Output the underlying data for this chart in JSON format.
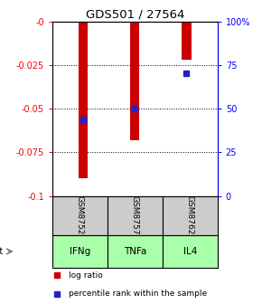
{
  "title": "GDS501 / 27564",
  "samples": [
    "GSM8752",
    "GSM8757",
    "GSM8762"
  ],
  "agents": [
    "IFNg",
    "TNFa",
    "IL4"
  ],
  "log_ratios": [
    -0.09,
    -0.068,
    -0.022
  ],
  "percentile_ranks": [
    44,
    50,
    70
  ],
  "bar_color": "#cc0000",
  "dot_color": "#2222cc",
  "left_ylim": [
    -0.1,
    0.0
  ],
  "right_ylim": [
    0,
    100
  ],
  "left_yticks": [
    0.0,
    -0.025,
    -0.05,
    -0.075,
    -0.1
  ],
  "left_yticklabels": [
    "-0",
    "-0.025",
    "-0.05",
    "-0.075",
    "-0.1"
  ],
  "right_yticks": [
    0,
    25,
    50,
    75,
    100
  ],
  "right_yticklabels": [
    "0",
    "25",
    "50",
    "75",
    "100%"
  ],
  "sample_bg_color": "#cccccc",
  "agent_bg_color": "#aaffaa",
  "legend_log_ratio_color": "#cc0000",
  "legend_percentile_color": "#2222cc",
  "bar_width": 0.18
}
